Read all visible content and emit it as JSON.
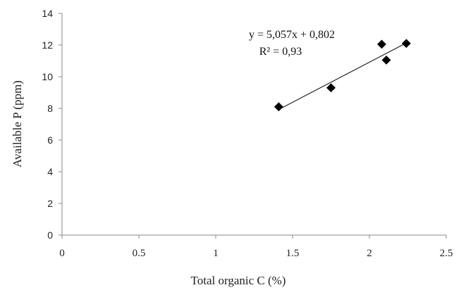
{
  "chart_data": {
    "type": "scatter",
    "xlabel": "Total organic C (%)",
    "ylabel": "Available P (ppm)",
    "xlim": [
      0,
      2.5
    ],
    "ylim": [
      0,
      14
    ],
    "x_ticks": [
      "0",
      "0.5",
      "1",
      "1.5",
      "2",
      "2.5"
    ],
    "y_ticks": [
      "0",
      "2",
      "4",
      "6",
      "8",
      "10",
      "12",
      "14"
    ],
    "grid": false,
    "legend": "none",
    "marker": "diamond",
    "marker_color": "#000000",
    "points": [
      {
        "x": 1.41,
        "y": 8.1
      },
      {
        "x": 1.75,
        "y": 9.3
      },
      {
        "x": 2.08,
        "y": 12.05
      },
      {
        "x": 2.11,
        "y": 11.05
      },
      {
        "x": 2.24,
        "y": 12.1
      }
    ],
    "trendline": {
      "x_range": [
        1.41,
        2.24
      ],
      "slope": 5.057,
      "intercept": 0.802,
      "equation": "y = 5,057x + 0,802",
      "r_squared": "R² = 0,93"
    }
  }
}
